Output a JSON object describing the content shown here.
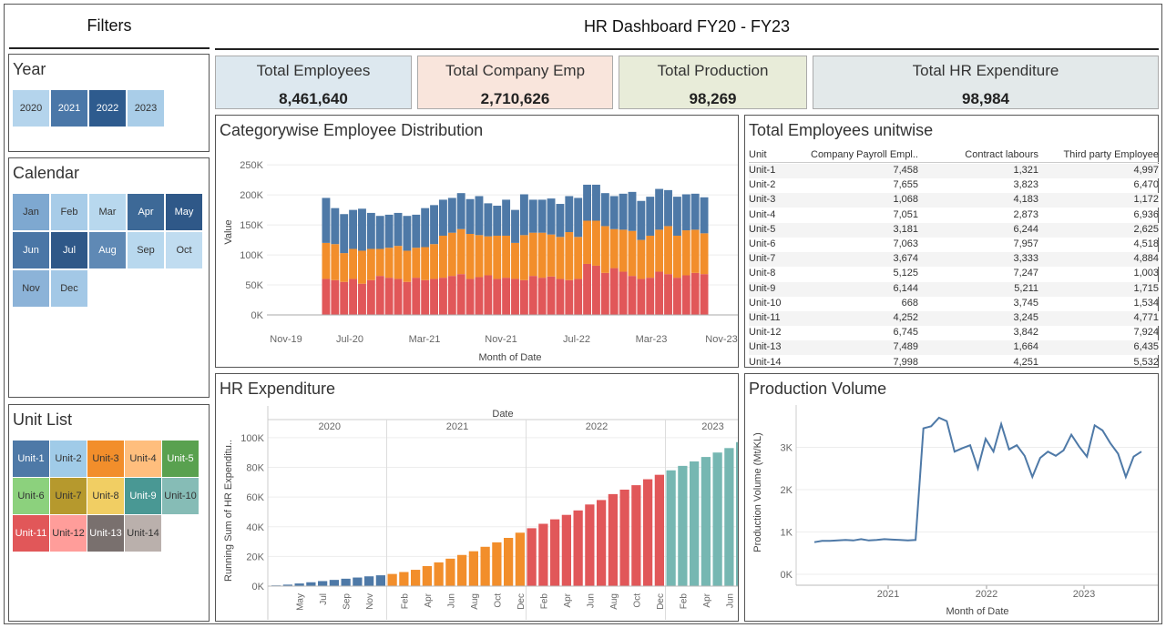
{
  "header": {
    "filters_title": "Filters",
    "dashboard_title": "HR Dashboard FY20 - FY23"
  },
  "year_filter": {
    "title": "Year",
    "items": [
      "2020",
      "2021",
      "2022",
      "2023"
    ],
    "colors": [
      "#b4d4ec",
      "#4a77a8",
      "#2e5b8e",
      "#a9cde8"
    ]
  },
  "calendar_filter": {
    "title": "Calendar",
    "items": [
      "Jan",
      "Feb",
      "Mar",
      "Apr",
      "May",
      "Jun",
      "Jul",
      "Aug",
      "Sep",
      "Oct",
      "Nov",
      "Dec"
    ],
    "colors": [
      "#7ea8d0",
      "#a8cce8",
      "#b8d8ee",
      "#3d6997",
      "#2f5888",
      "#4a76a6",
      "#2f5888",
      "#5f89b5",
      "#b8d8ee",
      "#c0dcf0",
      "#8cb3d8",
      "#a3c8e6"
    ]
  },
  "unit_list": {
    "title": "Unit List",
    "items": [
      "Unit-1",
      "Unit-2",
      "Unit-3",
      "Unit-4",
      "Unit-5",
      "Unit-6",
      "Unit-7",
      "Unit-8",
      "Unit-9",
      "Unit-10",
      "Unit-11",
      "Unit-12",
      "Unit-13",
      "Unit-14"
    ],
    "colors": [
      "#4e79a7",
      "#a0cbe8",
      "#f28e2b",
      "#ffbe7d",
      "#59a14f",
      "#8cd17d",
      "#b6992d",
      "#f1ce63",
      "#499894",
      "#86bcb6",
      "#e15759",
      "#ff9d9a",
      "#79706e",
      "#bab0ac"
    ],
    "text_colors": [
      "#ffffff",
      "#333333",
      "#333333",
      "#333333",
      "#ffffff",
      "#333333",
      "#333333",
      "#333333",
      "#ffffff",
      "#333333",
      "#ffffff",
      "#333333",
      "#ffffff",
      "#333333"
    ]
  },
  "kpis": [
    {
      "label": "Total Employees",
      "value": "8,461,640",
      "color": "#dde8ef"
    },
    {
      "label": "Total Company Emp",
      "value": "2,710,626",
      "color": "#f9e5dc"
    },
    {
      "label": "Total Production",
      "value": "98,269",
      "color": "#e8ecd9"
    },
    {
      "label": "Total HR Expenditure",
      "value": "98,984",
      "color": "#e3e9ea"
    }
  ],
  "category_chart": {
    "title": "Categorywise Employee Distribution",
    "chart_data": {
      "type": "bar",
      "stacked": true,
      "title": "",
      "xlabel": "Month of Date",
      "ylabel": "Value",
      "y_ticks": [
        "250K",
        "200K",
        "150K",
        "100K",
        "50K",
        "0K"
      ],
      "x_ticks": [
        "Nov-19",
        "Jul-20",
        "Mar-21",
        "Nov-21",
        "Jul-22",
        "Mar-23",
        "Nov-23"
      ],
      "ylim": [
        0,
        270000
      ],
      "series_colors": [
        "#e15759",
        "#f28e2b",
        "#4e79a7"
      ],
      "series_values": [
        [
          60000,
          58000,
          55000,
          60000,
          52000,
          58000,
          65000,
          62000,
          60000,
          55000,
          62000,
          58000,
          60000,
          62000,
          65000,
          68000,
          60000,
          63000,
          66000,
          60000,
          62000,
          60000,
          58000,
          65000,
          62000,
          64000,
          60000,
          58000,
          60000,
          85000,
          82000,
          70000,
          78000,
          72000,
          65000,
          60000,
          62000,
          72000,
          68000,
          62000,
          66000,
          70000,
          68000
        ],
        [
          60000,
          60000,
          48000,
          50000,
          55000,
          52000,
          45000,
          50000,
          55000,
          52000,
          50000,
          55000,
          58000,
          70000,
          72000,
          75000,
          75000,
          70000,
          65000,
          72000,
          70000,
          60000,
          75000,
          72000,
          75000,
          70000,
          70000,
          80000,
          70000,
          72000,
          75000,
          78000,
          65000,
          70000,
          75000,
          65000,
          70000,
          70000,
          80000,
          70000,
          75000,
          72000,
          68000
        ],
        [
          75000,
          60000,
          65000,
          65000,
          70000,
          60000,
          55000,
          55000,
          55000,
          58000,
          55000,
          65000,
          65000,
          60000,
          58000,
          60000,
          58000,
          65000,
          55000,
          50000,
          60000,
          55000,
          68000,
          55000,
          55000,
          60000,
          55000,
          60000,
          65000,
          60000,
          60000,
          55000,
          55000,
          60000,
          65000,
          65000,
          65000,
          68000,
          60000,
          65000,
          60000,
          60000,
          60000
        ]
      ]
    }
  },
  "unit_table": {
    "title": "Total Employees unitwise",
    "columns": [
      "Unit",
      "Company Payroll Empl..",
      "Contract labours",
      "Third party Employee"
    ],
    "rows": [
      [
        "Unit-1",
        "7,458",
        "1,321",
        "4,997"
      ],
      [
        "Unit-2",
        "7,655",
        "3,823",
        "6,470"
      ],
      [
        "Unit-3",
        "1,068",
        "4,183",
        "1,172"
      ],
      [
        "Unit-4",
        "7,051",
        "2,873",
        "6,936"
      ],
      [
        "Unit-5",
        "3,181",
        "6,244",
        "2,625"
      ],
      [
        "Unit-6",
        "7,063",
        "7,957",
        "4,518"
      ],
      [
        "Unit-7",
        "3,674",
        "3,333",
        "4,884"
      ],
      [
        "Unit-8",
        "5,125",
        "7,247",
        "1,003"
      ],
      [
        "Unit-9",
        "6,144",
        "5,211",
        "1,715"
      ],
      [
        "Unit-10",
        "668",
        "3,745",
        "1,534"
      ],
      [
        "Unit-11",
        "4,252",
        "3,245",
        "4,771"
      ],
      [
        "Unit-12",
        "6,745",
        "3,842",
        "7,924"
      ],
      [
        "Unit-13",
        "7,489",
        "1,664",
        "6,435"
      ],
      [
        "Unit-14",
        "7,998",
        "4,251",
        "5,532"
      ]
    ]
  },
  "hr_chart": {
    "title": "HR Expenditure",
    "chart_data": {
      "type": "bar",
      "title": "",
      "xlabel": "Date",
      "ylabel": "Running Sum of HR Expenditu..",
      "year_headers": [
        "2020",
        "2021",
        "2022",
        "2023"
      ],
      "year_colors": [
        "#4e79a7",
        "#f28e2b",
        "#e15759",
        "#76b7b2"
      ],
      "y_ticks": [
        "100K",
        "80K",
        "60K",
        "40K",
        "20K",
        "0K"
      ],
      "ylim": [
        0,
        103000
      ],
      "month_labels": [
        [
          "Mar",
          "Apr",
          "May",
          "Jun",
          "Jul",
          "Aug",
          "Sep",
          "Oct",
          "Nov",
          "Dec"
        ],
        [
          "Jan",
          "Feb",
          "Mar",
          "Apr",
          "May",
          "Jun",
          "Jul",
          "Aug",
          "Sep",
          "Oct",
          "Nov",
          "Dec"
        ],
        [
          "Jan",
          "Feb",
          "Mar",
          "Apr",
          "May",
          "Jun",
          "Jul",
          "Aug",
          "Sep",
          "Oct",
          "Nov",
          "Dec"
        ],
        [
          "Jan",
          "Feb",
          "Mar",
          "Apr",
          "May",
          "Jun",
          "Jul",
          "Aug"
        ]
      ],
      "shown_month_ticks": [
        [
          "May",
          "Jul",
          "Sep",
          "Nov"
        ],
        [
          "Feb",
          "Apr",
          "Jun",
          "Aug",
          "Oct",
          "Dec"
        ],
        [
          "Feb",
          "Apr",
          "Jun",
          "Aug",
          "Oct",
          "Dec"
        ],
        [
          "Feb",
          "Apr",
          "Jun",
          "Aug"
        ]
      ],
      "values": [
        [
          500,
          1000,
          1800,
          2600,
          3400,
          4200,
          5000,
          5800,
          6600,
          7300
        ],
        [
          8200,
          9500,
          11000,
          13500,
          16000,
          18500,
          21000,
          23500,
          26500,
          29500,
          32500,
          36000
        ],
        [
          39000,
          42000,
          45000,
          48000,
          51000,
          55000,
          58000,
          62000,
          65000,
          68000,
          72000,
          75000
        ],
        [
          78000,
          81000,
          84000,
          87000,
          90000,
          93000,
          97000,
          100000
        ]
      ]
    }
  },
  "production_chart": {
    "title": "Production Volume",
    "chart_data": {
      "type": "line",
      "title": "",
      "xlabel": "Month of Date",
      "ylabel": "Production Volume (Mt/KL)",
      "y_ticks": [
        "3K",
        "2K",
        "1K",
        "0K"
      ],
      "x_ticks": [
        "2021",
        "2022",
        "2023"
      ],
      "ylim": [
        0,
        4000
      ],
      "color": "#4e79a7",
      "values": [
        760,
        790,
        790,
        800,
        810,
        800,
        830,
        800,
        810,
        830,
        820,
        810,
        800,
        810,
        3450,
        3500,
        3700,
        3620,
        2900,
        2980,
        3050,
        2500,
        3200,
        2900,
        3550,
        2950,
        3050,
        2800,
        2300,
        2750,
        2900,
        2800,
        2930,
        3300,
        3020,
        2780,
        3520,
        3400,
        3100,
        2850,
        2300,
        2780,
        2900
      ]
    }
  }
}
